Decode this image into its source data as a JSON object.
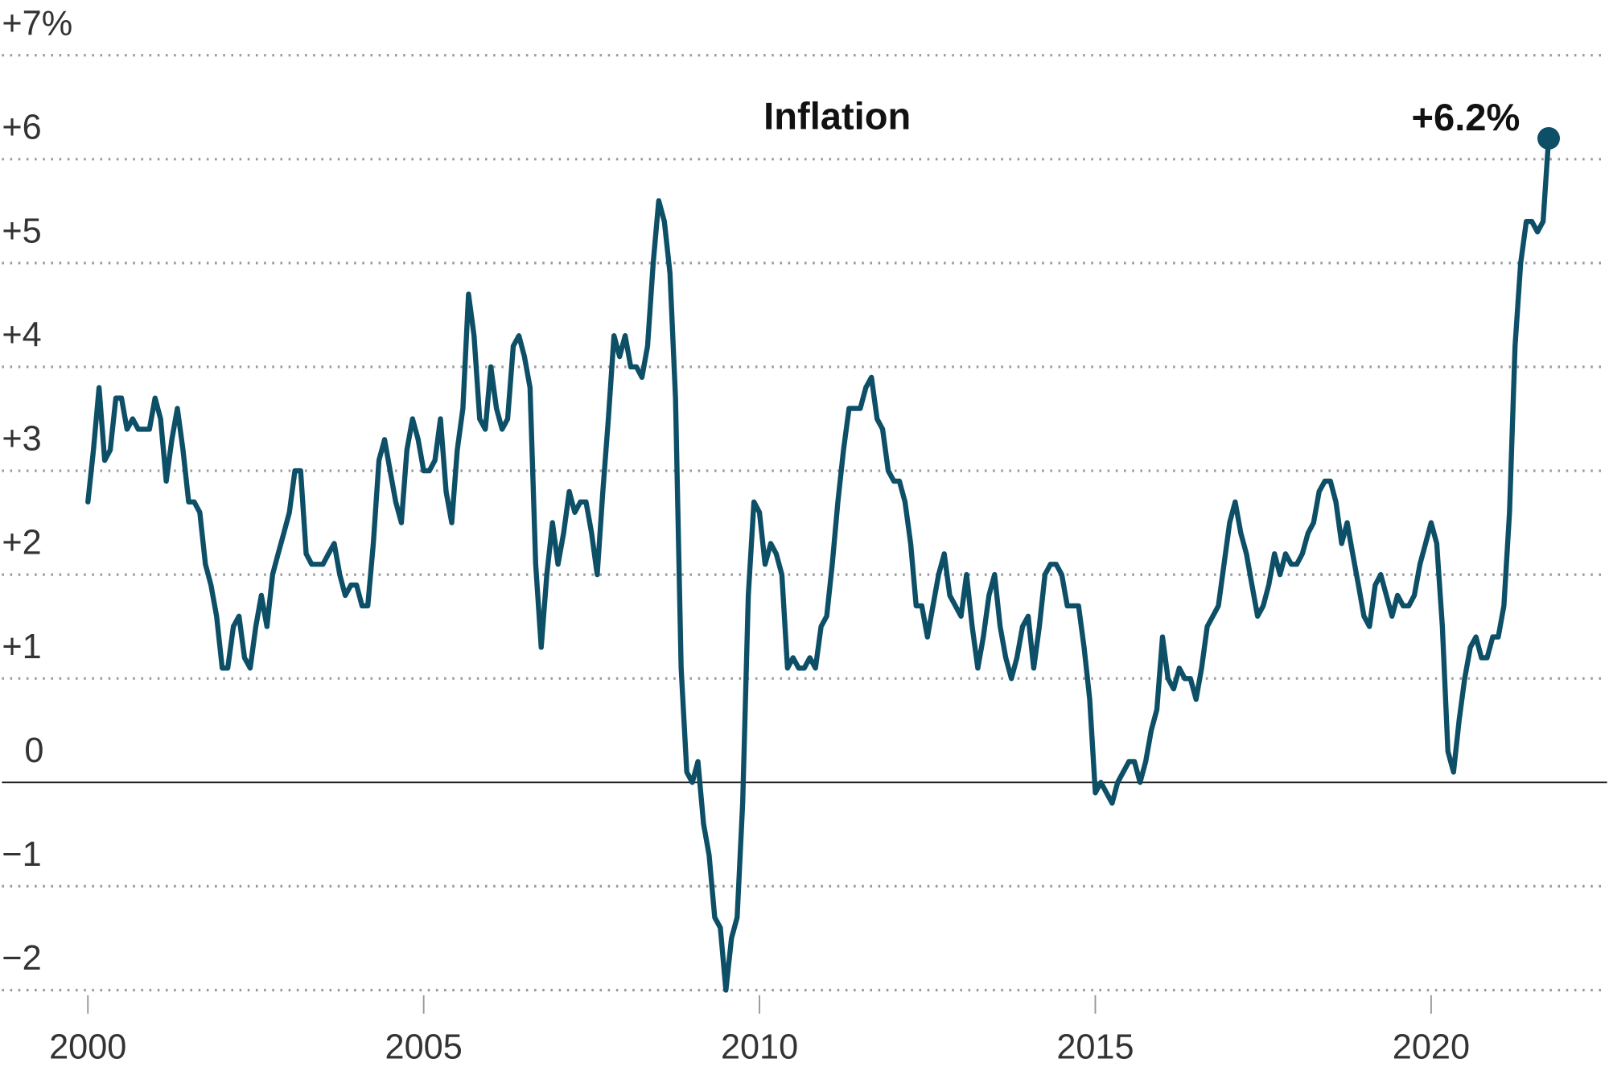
{
  "chart_data": {
    "type": "line",
    "series": [
      {
        "name": "Inflation",
        "color": "#0d4f66",
        "values": [
          2.7,
          3.2,
          3.8,
          3.1,
          3.2,
          3.7,
          3.7,
          3.4,
          3.5,
          3.4,
          3.4,
          3.4,
          3.7,
          3.5,
          2.9,
          3.3,
          3.6,
          3.2,
          2.7,
          2.7,
          2.6,
          2.1,
          1.9,
          1.6,
          1.1,
          1.1,
          1.5,
          1.6,
          1.2,
          1.1,
          1.5,
          1.8,
          1.5,
          2.0,
          2.2,
          2.4,
          2.6,
          3.0,
          3.0,
          2.2,
          2.1,
          2.1,
          2.1,
          2.2,
          2.3,
          2.0,
          1.8,
          1.9,
          1.9,
          1.7,
          1.7,
          2.3,
          3.1,
          3.3,
          3.0,
          2.7,
          2.5,
          3.2,
          3.5,
          3.3,
          3.0,
          3.0,
          3.1,
          3.5,
          2.8,
          2.5,
          3.2,
          3.6,
          4.7,
          4.3,
          3.5,
          3.4,
          4.0,
          3.6,
          3.4,
          3.5,
          4.2,
          4.3,
          4.1,
          3.8,
          2.1,
          1.3,
          2.0,
          2.5,
          2.1,
          2.4,
          2.8,
          2.6,
          2.7,
          2.7,
          2.4,
          2.0,
          2.8,
          3.5,
          4.3,
          4.1,
          4.3,
          4.0,
          4.0,
          3.9,
          4.2,
          5.0,
          5.6,
          5.4,
          4.9,
          3.7,
          1.1,
          0.1,
          0.0,
          0.2,
          -0.4,
          -0.7,
          -1.3,
          -1.4,
          -2.0,
          -1.5,
          -1.3,
          -0.2,
          1.8,
          2.7,
          2.6,
          2.1,
          2.3,
          2.2,
          2.0,
          1.1,
          1.2,
          1.1,
          1.1,
          1.2,
          1.1,
          1.5,
          1.6,
          2.1,
          2.7,
          3.2,
          3.6,
          3.6,
          3.6,
          3.8,
          3.9,
          3.5,
          3.4,
          3.0,
          2.9,
          2.9,
          2.7,
          2.3,
          1.7,
          1.7,
          1.4,
          1.7,
          2.0,
          2.2,
          1.8,
          1.7,
          1.6,
          2.0,
          1.5,
          1.1,
          1.4,
          1.8,
          2.0,
          1.5,
          1.2,
          1.0,
          1.2,
          1.5,
          1.6,
          1.1,
          1.5,
          2.0,
          2.1,
          2.1,
          2.0,
          1.7,
          1.7,
          1.7,
          1.3,
          0.8,
          -0.1,
          0.0,
          -0.1,
          -0.2,
          0.0,
          0.1,
          0.2,
          0.2,
          0.0,
          0.2,
          0.5,
          0.7,
          1.4,
          1.0,
          0.9,
          1.1,
          1.0,
          1.0,
          0.8,
          1.1,
          1.5,
          1.6,
          1.7,
          2.1,
          2.5,
          2.7,
          2.4,
          2.2,
          1.9,
          1.6,
          1.7,
          1.9,
          2.2,
          2.0,
          2.2,
          2.1,
          2.1,
          2.2,
          2.4,
          2.5,
          2.8,
          2.9,
          2.9,
          2.7,
          2.3,
          2.5,
          2.2,
          1.9,
          1.6,
          1.5,
          1.9,
          2.0,
          1.8,
          1.6,
          1.8,
          1.7,
          1.7,
          1.8,
          2.1,
          2.3,
          2.5,
          2.3,
          1.5,
          0.3,
          0.1,
          0.6,
          1.0,
          1.3,
          1.4,
          1.2,
          1.2,
          1.4,
          1.4,
          1.7,
          2.6,
          4.2,
          5.0,
          5.4,
          5.4,
          5.3,
          5.4,
          6.2
        ]
      }
    ],
    "x": [
      2000,
      2000.083,
      2000.167,
      2000.25,
      2000.333,
      2000.417,
      2000.5,
      2000.583,
      2000.667,
      2000.75,
      2000.833,
      2000.917,
      2001,
      2001.083,
      2001.167,
      2001.25,
      2001.333,
      2001.417,
      2001.5,
      2001.583,
      2001.667,
      2001.75,
      2001.833,
      2001.917,
      2002,
      2002.083,
      2002.167,
      2002.25,
      2002.333,
      2002.417,
      2002.5,
      2002.583,
      2002.667,
      2002.75,
      2002.833,
      2002.917,
      2003,
      2003.083,
      2003.167,
      2003.25,
      2003.333,
      2003.417,
      2003.5,
      2003.583,
      2003.667,
      2003.75,
      2003.833,
      2003.917,
      2004,
      2004.083,
      2004.167,
      2004.25,
      2004.333,
      2004.417,
      2004.5,
      2004.583,
      2004.667,
      2004.75,
      2004.833,
      2004.917,
      2005,
      2005.083,
      2005.167,
      2005.25,
      2005.333,
      2005.417,
      2005.5,
      2005.583,
      2005.667,
      2005.75,
      2005.833,
      2005.917,
      2006,
      2006.083,
      2006.167,
      2006.25,
      2006.333,
      2006.417,
      2006.5,
      2006.583,
      2006.667,
      2006.75,
      2006.833,
      2006.917,
      2007,
      2007.083,
      2007.167,
      2007.25,
      2007.333,
      2007.417,
      2007.5,
      2007.583,
      2007.667,
      2007.75,
      2007.833,
      2007.917,
      2008,
      2008.083,
      2008.167,
      2008.25,
      2008.333,
      2008.417,
      2008.5,
      2008.583,
      2008.667,
      2008.75,
      2008.833,
      2008.917,
      2009,
      2009.083,
      2009.167,
      2009.25,
      2009.333,
      2009.417,
      2009.5,
      2009.583,
      2009.667,
      2009.75,
      2009.833,
      2009.917,
      2010,
      2010.083,
      2010.167,
      2010.25,
      2010.333,
      2010.417,
      2010.5,
      2010.583,
      2010.667,
      2010.75,
      2010.833,
      2010.917,
      2011,
      2011.083,
      2011.167,
      2011.25,
      2011.333,
      2011.417,
      2011.5,
      2011.583,
      2011.667,
      2011.75,
      2011.833,
      2011.917,
      2012,
      2012.083,
      2012.167,
      2012.25,
      2012.333,
      2012.417,
      2012.5,
      2012.583,
      2012.667,
      2012.75,
      2012.833,
      2012.917,
      2013,
      2013.083,
      2013.167,
      2013.25,
      2013.333,
      2013.417,
      2013.5,
      2013.583,
      2013.667,
      2013.75,
      2013.833,
      2013.917,
      2014,
      2014.083,
      2014.167,
      2014.25,
      2014.333,
      2014.417,
      2014.5,
      2014.583,
      2014.667,
      2014.75,
      2014.833,
      2014.917,
      2015,
      2015.083,
      2015.167,
      2015.25,
      2015.333,
      2015.417,
      2015.5,
      2015.583,
      2015.667,
      2015.75,
      2015.833,
      2015.917,
      2016,
      2016.083,
      2016.167,
      2016.25,
      2016.333,
      2016.417,
      2016.5,
      2016.583,
      2016.667,
      2016.75,
      2016.833,
      2016.917,
      2017,
      2017.083,
      2017.167,
      2017.25,
      2017.333,
      2017.417,
      2017.5,
      2017.583,
      2017.667,
      2017.75,
      2017.833,
      2017.917,
      2018,
      2018.083,
      2018.167,
      2018.25,
      2018.333,
      2018.417,
      2018.5,
      2018.583,
      2018.667,
      2018.75,
      2018.833,
      2018.917,
      2019,
      2019.083,
      2019.167,
      2019.25,
      2019.333,
      2019.417,
      2019.5,
      2019.583,
      2019.667,
      2019.75,
      2019.833,
      2019.917,
      2020,
      2020.083,
      2020.167,
      2020.25,
      2020.333,
      2020.417,
      2020.5,
      2020.583,
      2020.667,
      2020.75,
      2020.833,
      2020.917,
      2021,
      2021.083,
      2021.167,
      2021.25,
      2021.333,
      2021.417,
      2021.5,
      2021.583,
      2021.667,
      2021.75
    ],
    "end_label": "+6.2%",
    "xlim": [
      1998.72,
      2022.62
    ],
    "xticks": [
      2000,
      2005,
      2010,
      2015,
      2020
    ],
    "ylim": [
      -2,
      7
    ],
    "yticks": [
      {
        "value": -2,
        "label": "−2"
      },
      {
        "value": -1,
        "label": "−1"
      },
      0,
      {
        "value": 1,
        "label": "+1"
      },
      {
        "value": 2,
        "label": "+2"
      },
      {
        "value": 3,
        "label": "+3"
      },
      {
        "value": 4,
        "label": "+4"
      },
      {
        "value": 5,
        "label": "+5"
      },
      {
        "value": 6,
        "label": "+6"
      },
      {
        "value": 7,
        "label": "+7%"
      }
    ],
    "grid": true
  }
}
